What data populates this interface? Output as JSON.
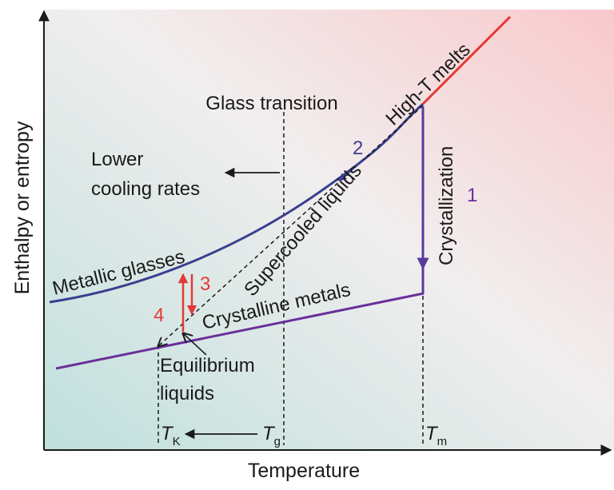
{
  "axes": {
    "xlabel": "Temperature",
    "ylabel": "Enthalpy or entropy"
  },
  "labels": {
    "glass_transition": "Glass transition",
    "lower_cooling_line1": "Lower",
    "lower_cooling_line2": "cooling rates",
    "metallic_glasses": "Metallic glasses",
    "supercooled_liquids": "Supercooled liquids",
    "crystalline_metals": "Crystalline metals",
    "high_t_melts": "High-T melts",
    "crystallization": "Crystallization",
    "equilibrium_line1": "Equilibrium",
    "equilibrium_line2": "liquids"
  },
  "steps": {
    "s1": "1",
    "s2": "2",
    "s3": "3",
    "s4": "4"
  },
  "ticks": {
    "tk_main": "T",
    "tk_sub": "K",
    "tg_main": "T",
    "tg_sub": "g",
    "tm_main": "T",
    "tm_sub": "m"
  },
  "colors": {
    "glass_curve": "#3a3f8f",
    "crystal_line": "#6a2f9a",
    "melt_line": "#e53935",
    "crystallization_arrow": "#5a3a9a",
    "step_red": "#e53935",
    "step_blue": "#3a3f8f",
    "step_purple": "#6a2f9a",
    "bg_topright": "#f9c9cc",
    "bg_bottomleft": "#bfe0dc"
  }
}
